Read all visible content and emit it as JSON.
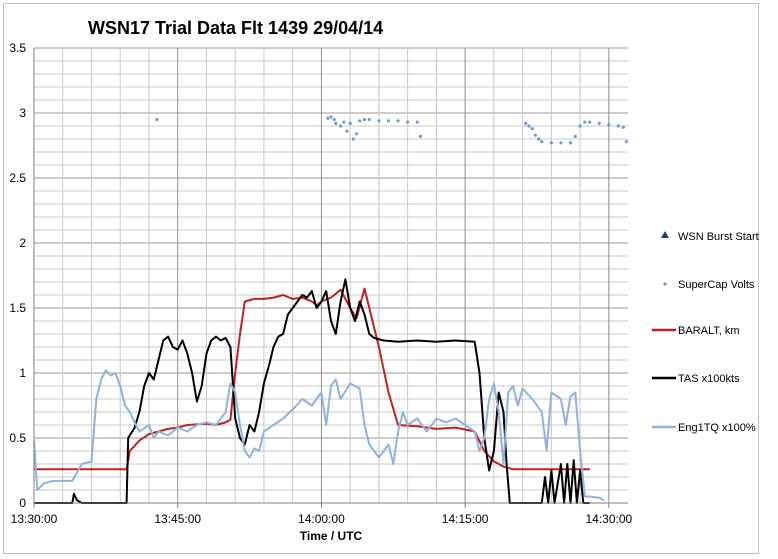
{
  "chart_data": {
    "type": "line",
    "title": "WSN17 Trial Data Flt 1439 29/04/14",
    "xlabel": "Time / UTC",
    "ylabel": "",
    "xlim": [
      "13:30:00",
      "14:32:00"
    ],
    "ylim": [
      0,
      3.5
    ],
    "x_ticks": [
      "13:30:00",
      "13:45:00",
      "14:00:00",
      "14:15:00",
      "14:30:00"
    ],
    "y_ticks": [
      "0",
      "0.5",
      "1",
      "1.5",
      "2",
      "2.5",
      "3",
      "3.5"
    ],
    "grid": true,
    "legend_position": "right",
    "series": [
      {
        "name": "WSN Burst Start",
        "kind": "marker",
        "color": "#1f3a78",
        "points": []
      },
      {
        "name": "SuperCap Volts",
        "kind": "scatter",
        "color": "#6f9bd1",
        "points": [
          [
            "13:42:50",
            2.95
          ],
          [
            "14:00:40",
            2.96
          ],
          [
            "14:01:00",
            2.97
          ],
          [
            "14:01:20",
            2.95
          ],
          [
            "14:01:30",
            2.92
          ],
          [
            "14:02:00",
            2.9
          ],
          [
            "14:02:20",
            2.93
          ],
          [
            "14:02:40",
            2.86
          ],
          [
            "14:03:00",
            2.92
          ],
          [
            "14:03:20",
            2.8
          ],
          [
            "14:03:40",
            2.84
          ],
          [
            "14:04:00",
            2.94
          ],
          [
            "14:04:30",
            2.95
          ],
          [
            "14:05:00",
            2.95
          ],
          [
            "14:06:00",
            2.94
          ],
          [
            "14:07:00",
            2.94
          ],
          [
            "14:08:00",
            2.94
          ],
          [
            "14:09:00",
            2.93
          ],
          [
            "14:10:00",
            2.93
          ],
          [
            "14:10:20",
            2.82
          ],
          [
            "14:21:20",
            2.92
          ],
          [
            "14:21:40",
            2.9
          ],
          [
            "14:22:00",
            2.88
          ],
          [
            "14:22:20",
            2.83
          ],
          [
            "14:22:40",
            2.8
          ],
          [
            "14:23:00",
            2.78
          ],
          [
            "14:24:00",
            2.77
          ],
          [
            "14:25:00",
            2.77
          ],
          [
            "14:26:00",
            2.77
          ],
          [
            "14:26:30",
            2.82
          ],
          [
            "14:27:00",
            2.9
          ],
          [
            "14:27:30",
            2.93
          ],
          [
            "14:28:00",
            2.93
          ],
          [
            "14:29:00",
            2.92
          ],
          [
            "14:30:00",
            2.91
          ],
          [
            "14:31:00",
            2.9
          ],
          [
            "14:31:30",
            2.89
          ],
          [
            "14:31:50",
            2.78
          ]
        ]
      },
      {
        "name": "BARALT, km",
        "kind": "line",
        "color": "#c0211f",
        "points": [
          [
            "13:30:00",
            0.26
          ],
          [
            "13:34:00",
            0.26
          ],
          [
            "13:36:00",
            0.26
          ],
          [
            "13:38:00",
            0.26
          ],
          [
            "13:39:40",
            0.26
          ],
          [
            "13:40:00",
            0.4
          ],
          [
            "13:41:00",
            0.48
          ],
          [
            "13:42:00",
            0.53
          ],
          [
            "13:43:00",
            0.55
          ],
          [
            "13:44:00",
            0.57
          ],
          [
            "13:45:00",
            0.58
          ],
          [
            "13:46:00",
            0.6
          ],
          [
            "13:48:00",
            0.61
          ],
          [
            "13:49:00",
            0.6
          ],
          [
            "13:50:00",
            0.62
          ],
          [
            "13:50:30",
            0.64
          ],
          [
            "13:51:00",
            1.0
          ],
          [
            "13:51:30",
            1.3
          ],
          [
            "13:52:00",
            1.55
          ],
          [
            "13:53:00",
            1.57
          ],
          [
            "13:54:00",
            1.57
          ],
          [
            "13:55:00",
            1.58
          ],
          [
            "13:56:00",
            1.6
          ],
          [
            "13:57:00",
            1.57
          ],
          [
            "13:58:00",
            1.58
          ],
          [
            "13:59:00",
            1.55
          ],
          [
            "13:59:30",
            1.52
          ],
          [
            "14:00:00",
            1.55
          ],
          [
            "14:01:00",
            1.58
          ],
          [
            "14:02:00",
            1.64
          ],
          [
            "14:03:00",
            1.5
          ],
          [
            "14:03:40",
            1.42
          ],
          [
            "14:04:30",
            1.65
          ],
          [
            "14:05:00",
            1.5
          ],
          [
            "14:06:00",
            1.2
          ],
          [
            "14:07:00",
            0.85
          ],
          [
            "14:08:00",
            0.6
          ],
          [
            "14:10:00",
            0.59
          ],
          [
            "14:12:00",
            0.57
          ],
          [
            "14:14:00",
            0.58
          ],
          [
            "14:16:00",
            0.55
          ],
          [
            "14:17:00",
            0.4
          ],
          [
            "14:18:00",
            0.32
          ],
          [
            "14:19:00",
            0.28
          ],
          [
            "14:20:00",
            0.26
          ],
          [
            "14:22:00",
            0.26
          ],
          [
            "14:24:00",
            0.26
          ],
          [
            "14:26:00",
            0.26
          ],
          [
            "14:28:00",
            0.26
          ]
        ]
      },
      {
        "name": "TAS x100kts",
        "kind": "line",
        "color": "#000000",
        "points": [
          [
            "13:30:00",
            0.0
          ],
          [
            "13:34:00",
            0.0
          ],
          [
            "13:34:10",
            0.07
          ],
          [
            "13:34:30",
            0.02
          ],
          [
            "13:35:00",
            0.0
          ],
          [
            "13:38:00",
            0.0
          ],
          [
            "13:39:40",
            0.0
          ],
          [
            "13:39:50",
            0.5
          ],
          [
            "13:40:30",
            0.58
          ],
          [
            "13:41:00",
            0.7
          ],
          [
            "13:41:30",
            0.9
          ],
          [
            "13:42:00",
            1.0
          ],
          [
            "13:42:30",
            0.95
          ],
          [
            "13:43:00",
            1.1
          ],
          [
            "13:43:30",
            1.25
          ],
          [
            "13:44:00",
            1.28
          ],
          [
            "13:44:30",
            1.2
          ],
          [
            "13:45:00",
            1.18
          ],
          [
            "13:45:30",
            1.25
          ],
          [
            "13:46:00",
            1.15
          ],
          [
            "13:46:30",
            1.0
          ],
          [
            "13:47:00",
            0.78
          ],
          [
            "13:47:30",
            0.9
          ],
          [
            "13:48:00",
            1.15
          ],
          [
            "13:48:30",
            1.25
          ],
          [
            "13:49:00",
            1.28
          ],
          [
            "13:49:30",
            1.25
          ],
          [
            "13:50:00",
            1.27
          ],
          [
            "13:50:30",
            1.2
          ],
          [
            "13:51:00",
            0.65
          ],
          [
            "13:51:30",
            0.5
          ],
          [
            "13:52:00",
            0.45
          ],
          [
            "13:52:30",
            0.6
          ],
          [
            "13:53:00",
            0.55
          ],
          [
            "13:53:30",
            0.7
          ],
          [
            "13:54:00",
            0.92
          ],
          [
            "13:54:30",
            1.05
          ],
          [
            "13:55:00",
            1.2
          ],
          [
            "13:55:30",
            1.28
          ],
          [
            "13:56:00",
            1.3
          ],
          [
            "13:56:30",
            1.45
          ],
          [
            "13:57:00",
            1.5
          ],
          [
            "13:57:30",
            1.55
          ],
          [
            "13:58:00",
            1.6
          ],
          [
            "13:58:30",
            1.58
          ],
          [
            "13:59:00",
            1.63
          ],
          [
            "13:59:30",
            1.5
          ],
          [
            "14:00:00",
            1.55
          ],
          [
            "14:00:30",
            1.63
          ],
          [
            "14:01:00",
            1.4
          ],
          [
            "14:01:30",
            1.3
          ],
          [
            "14:02:00",
            1.55
          ],
          [
            "14:02:30",
            1.72
          ],
          [
            "14:03:00",
            1.5
          ],
          [
            "14:03:30",
            1.4
          ],
          [
            "14:04:00",
            1.55
          ],
          [
            "14:04:30",
            1.45
          ],
          [
            "14:05:00",
            1.3
          ],
          [
            "14:05:30",
            1.27
          ],
          [
            "14:06:30",
            1.25
          ],
          [
            "14:08:00",
            1.24
          ],
          [
            "14:10:00",
            1.25
          ],
          [
            "14:12:00",
            1.24
          ],
          [
            "14:14:00",
            1.25
          ],
          [
            "14:16:00",
            1.24
          ],
          [
            "14:16:30",
            1.0
          ],
          [
            "14:17:00",
            0.5
          ],
          [
            "14:17:30",
            0.25
          ],
          [
            "14:18:00",
            0.4
          ],
          [
            "14:18:30",
            0.85
          ],
          [
            "14:19:00",
            0.7
          ],
          [
            "14:19:20",
            0.3
          ],
          [
            "14:19:40",
            0.0
          ],
          [
            "14:20:00",
            0.0
          ],
          [
            "14:23:00",
            0.0
          ],
          [
            "14:23:20",
            0.2
          ],
          [
            "14:23:40",
            0.0
          ],
          [
            "14:24:00",
            0.25
          ],
          [
            "14:24:20",
            0.0
          ],
          [
            "14:25:00",
            0.3
          ],
          [
            "14:25:20",
            0.0
          ],
          [
            "14:25:40",
            0.3
          ],
          [
            "14:26:00",
            0.0
          ],
          [
            "14:26:20",
            0.33
          ],
          [
            "14:26:40",
            0.0
          ],
          [
            "14:27:00",
            0.25
          ],
          [
            "14:27:20",
            0.0
          ],
          [
            "14:28:00",
            0.0
          ]
        ]
      },
      {
        "name": "Eng1TQ x100%",
        "kind": "line",
        "color": "#8fb2de",
        "points": [
          [
            "13:30:00",
            0.48
          ],
          [
            "13:30:20",
            0.1
          ],
          [
            "13:31:00",
            0.15
          ],
          [
            "13:32:00",
            0.17
          ],
          [
            "13:34:00",
            0.17
          ],
          [
            "13:35:00",
            0.3
          ],
          [
            "13:36:00",
            0.32
          ],
          [
            "13:36:30",
            0.8
          ],
          [
            "13:37:00",
            0.95
          ],
          [
            "13:37:30",
            1.02
          ],
          [
            "13:38:00",
            0.98
          ],
          [
            "13:38:30",
            1.0
          ],
          [
            "13:39:00",
            0.9
          ],
          [
            "13:39:30",
            0.75
          ],
          [
            "13:40:00",
            0.7
          ],
          [
            "13:40:30",
            0.62
          ],
          [
            "13:41:00",
            0.55
          ],
          [
            "13:42:00",
            0.6
          ],
          [
            "13:42:30",
            0.5
          ],
          [
            "13:43:00",
            0.55
          ],
          [
            "13:44:00",
            0.52
          ],
          [
            "13:45:00",
            0.58
          ],
          [
            "13:46:00",
            0.55
          ],
          [
            "13:47:00",
            0.6
          ],
          [
            "13:48:00",
            0.62
          ],
          [
            "13:49:00",
            0.6
          ],
          [
            "13:50:00",
            0.7
          ],
          [
            "13:50:30",
            0.92
          ],
          [
            "13:51:00",
            0.85
          ],
          [
            "13:51:30",
            0.6
          ],
          [
            "13:52:00",
            0.4
          ],
          [
            "13:52:30",
            0.35
          ],
          [
            "13:53:00",
            0.42
          ],
          [
            "13:53:30",
            0.4
          ],
          [
            "13:54:00",
            0.55
          ],
          [
            "13:55:00",
            0.6
          ],
          [
            "13:56:00",
            0.65
          ],
          [
            "13:57:00",
            0.72
          ],
          [
            "13:58:00",
            0.8
          ],
          [
            "13:59:00",
            0.75
          ],
          [
            "14:00:00",
            0.85
          ],
          [
            "14:00:30",
            0.6
          ],
          [
            "14:01:00",
            0.9
          ],
          [
            "14:01:30",
            0.95
          ],
          [
            "14:02:00",
            0.8
          ],
          [
            "14:03:00",
            0.92
          ],
          [
            "14:04:00",
            0.88
          ],
          [
            "14:04:30",
            0.6
          ],
          [
            "14:05:00",
            0.45
          ],
          [
            "14:05:30",
            0.4
          ],
          [
            "14:06:00",
            0.35
          ],
          [
            "14:07:00",
            0.45
          ],
          [
            "14:07:30",
            0.3
          ],
          [
            "14:08:00",
            0.55
          ],
          [
            "14:08:30",
            0.7
          ],
          [
            "14:09:00",
            0.6
          ],
          [
            "14:10:00",
            0.65
          ],
          [
            "14:11:00",
            0.55
          ],
          [
            "14:12:00",
            0.65
          ],
          [
            "14:13:00",
            0.62
          ],
          [
            "14:14:00",
            0.65
          ],
          [
            "14:15:00",
            0.6
          ],
          [
            "14:16:00",
            0.55
          ],
          [
            "14:16:30",
            0.4
          ],
          [
            "14:17:00",
            0.5
          ],
          [
            "14:17:30",
            0.8
          ],
          [
            "14:18:00",
            0.92
          ],
          [
            "14:18:30",
            0.7
          ],
          [
            "14:19:00",
            0.3
          ],
          [
            "14:19:30",
            0.85
          ],
          [
            "14:20:00",
            0.9
          ],
          [
            "14:20:30",
            0.75
          ],
          [
            "14:21:00",
            0.88
          ],
          [
            "14:22:00",
            0.8
          ],
          [
            "14:23:00",
            0.7
          ],
          [
            "14:23:30",
            0.4
          ],
          [
            "14:24:00",
            0.85
          ],
          [
            "14:25:00",
            0.8
          ],
          [
            "14:25:30",
            0.6
          ],
          [
            "14:26:00",
            0.82
          ],
          [
            "14:26:30",
            0.85
          ],
          [
            "14:27:00",
            0.4
          ],
          [
            "14:27:30",
            0.05
          ],
          [
            "14:28:00",
            0.05
          ],
          [
            "14:29:00",
            0.04
          ],
          [
            "14:29:30",
            0.02
          ]
        ]
      }
    ]
  }
}
